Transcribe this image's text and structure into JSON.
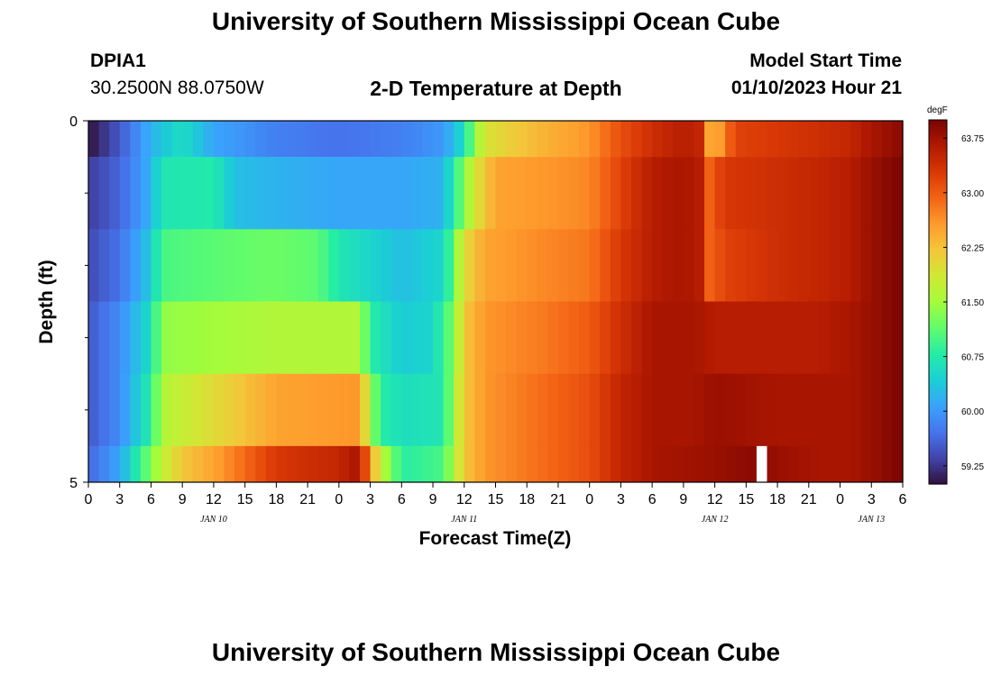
{
  "header": {
    "title": "University of Southern Mississippi Ocean Cube",
    "station_id": "DPIA1",
    "station_coords": "30.2500N  88.0750W",
    "chart_title": "2-D Temperature at Depth",
    "model_start_label": "Model Start Time",
    "model_start_value": "01/10/2023 Hour 21"
  },
  "footer": {
    "title_repeat": "University of Southern Mississippi Ocean Cube"
  },
  "colors": {
    "scale": [
      "#30123b",
      "#4145ab",
      "#4675ed",
      "#39a2fc",
      "#1bcfd4",
      "#24eca6",
      "#61fc6c",
      "#a4fc3b",
      "#d1e834",
      "#f3c63a",
      "#fe9b2d",
      "#f36315",
      "#d93806",
      "#b11901",
      "#7a0402"
    ]
  },
  "chart_data": {
    "type": "heatmap",
    "title": "2-D Temperature at Depth",
    "xlabel": "Forecast Time(Z)",
    "ylabel": "Depth (ft)",
    "x_tick_labels": [
      "0",
      "3",
      "6",
      "9",
      "12",
      "15",
      "18",
      "21",
      "0",
      "3",
      "6",
      "9",
      "12",
      "15",
      "18",
      "21",
      "0",
      "3",
      "6",
      "9",
      "12",
      "15",
      "18",
      "21",
      "0",
      "3",
      "6"
    ],
    "x_range_hours": [
      0,
      78
    ],
    "date_labels": [
      {
        "text": "JAN 10",
        "hour": 12
      },
      {
        "text": "JAN 11",
        "hour": 36
      },
      {
        "text": "JAN 12",
        "hour": 60
      },
      {
        "text": "JAN 13",
        "hour": 75
      }
    ],
    "y_tick_labels": [
      "0",
      "5"
    ],
    "y_range_ft": [
      0,
      5
    ],
    "y_minor_ticks_ft": [
      1,
      2,
      3,
      4
    ],
    "depth_layers_ft": [
      [
        0,
        0.5
      ],
      [
        0.5,
        1.5
      ],
      [
        1.5,
        2.5
      ],
      [
        2.5,
        3.5
      ],
      [
        3.5,
        4.5
      ],
      [
        4.5,
        5
      ]
    ],
    "colorbar": {
      "unit": "degF",
      "range": [
        59.0,
        64.0
      ],
      "tick_values": [
        59.25,
        60.0,
        60.75,
        61.5,
        62.25,
        63.0,
        63.75
      ],
      "tick_labels": [
        "59.25",
        "60.00",
        "60.75",
        "61.50",
        "62.25",
        "63.00",
        "63.75"
      ]
    },
    "layers": [
      {
        "depth_ft": "0-0.5",
        "knots": [
          [
            0,
            59.0
          ],
          [
            3,
            59.5
          ],
          [
            6,
            60.2
          ],
          [
            9,
            60.6
          ],
          [
            12,
            60.1
          ],
          [
            18,
            59.8
          ],
          [
            24,
            59.7
          ],
          [
            30,
            59.8
          ],
          [
            34,
            60.0
          ],
          [
            36,
            60.6
          ],
          [
            37,
            61.4
          ],
          [
            38,
            61.9
          ],
          [
            40,
            62.1
          ],
          [
            44,
            62.4
          ],
          [
            48,
            62.6
          ],
          [
            51,
            63.1
          ],
          [
            54,
            63.4
          ],
          [
            57,
            63.6
          ],
          [
            58.5,
            63.5
          ],
          [
            59,
            62.7
          ],
          [
            60,
            62.3
          ],
          [
            61,
            62.8
          ],
          [
            62,
            63.2
          ],
          [
            66,
            63.3
          ],
          [
            70,
            63.4
          ],
          [
            73,
            63.5
          ],
          [
            75,
            63.7
          ],
          [
            78,
            63.9
          ]
        ]
      },
      {
        "depth_ft": "0.5-1.5",
        "knots": [
          [
            0,
            59.3
          ],
          [
            3,
            59.6
          ],
          [
            6,
            60.2
          ],
          [
            7,
            60.7
          ],
          [
            12,
            60.75
          ],
          [
            14,
            60.3
          ],
          [
            18,
            60.2
          ],
          [
            24,
            60.1
          ],
          [
            30,
            60.1
          ],
          [
            34,
            60.2
          ],
          [
            35,
            60.8
          ],
          [
            36,
            61.3
          ],
          [
            37,
            61.9
          ],
          [
            39,
            62.5
          ],
          [
            44,
            62.6
          ],
          [
            48,
            62.7
          ],
          [
            51,
            63.2
          ],
          [
            54,
            63.6
          ],
          [
            57,
            63.7
          ],
          [
            58.5,
            63.6
          ],
          [
            59,
            62.8
          ],
          [
            60,
            63.1
          ],
          [
            61,
            63.3
          ],
          [
            66,
            63.4
          ],
          [
            70,
            63.5
          ],
          [
            73,
            63.6
          ],
          [
            75,
            63.8
          ],
          [
            78,
            64.0
          ]
        ]
      },
      {
        "depth_ft": "1.5-2.5",
        "knots": [
          [
            0,
            59.4
          ],
          [
            3,
            59.7
          ],
          [
            6,
            60.4
          ],
          [
            7,
            61.0
          ],
          [
            12,
            61.1
          ],
          [
            18,
            61.2
          ],
          [
            22,
            61.1
          ],
          [
            24,
            60.7
          ],
          [
            30,
            60.3
          ],
          [
            34,
            60.5
          ],
          [
            35,
            61.2
          ],
          [
            36,
            62.0
          ],
          [
            38,
            62.5
          ],
          [
            44,
            62.7
          ],
          [
            48,
            62.8
          ],
          [
            51,
            63.3
          ],
          [
            54,
            63.6
          ],
          [
            57,
            63.7
          ],
          [
            58.5,
            63.6
          ],
          [
            59,
            62.9
          ],
          [
            60,
            63.0
          ],
          [
            61,
            63.2
          ],
          [
            66,
            63.4
          ],
          [
            70,
            63.5
          ],
          [
            73,
            63.6
          ],
          [
            75,
            63.8
          ],
          [
            78,
            64.0
          ]
        ]
      },
      {
        "depth_ft": "2.5-3.5",
        "knots": [
          [
            0,
            59.5
          ],
          [
            3,
            59.9
          ],
          [
            6,
            60.6
          ],
          [
            7,
            61.4
          ],
          [
            12,
            61.5
          ],
          [
            18,
            61.6
          ],
          [
            26,
            61.6
          ],
          [
            27,
            60.8
          ],
          [
            30,
            60.4
          ],
          [
            33,
            60.5
          ],
          [
            35,
            61.3
          ],
          [
            36,
            62.2
          ],
          [
            38,
            62.6
          ],
          [
            44,
            62.8
          ],
          [
            48,
            63.0
          ],
          [
            51,
            63.4
          ],
          [
            54,
            63.7
          ],
          [
            58,
            63.7
          ],
          [
            60,
            63.6
          ],
          [
            66,
            63.6
          ],
          [
            70,
            63.6
          ],
          [
            73,
            63.7
          ],
          [
            75,
            63.8
          ],
          [
            78,
            64.0
          ]
        ]
      },
      {
        "depth_ft": "3.5-4.5",
        "knots": [
          [
            0,
            59.5
          ],
          [
            3,
            59.9
          ],
          [
            6,
            60.8
          ],
          [
            7,
            61.6
          ],
          [
            12,
            62.0
          ],
          [
            18,
            62.5
          ],
          [
            26,
            62.6
          ],
          [
            27,
            61.5
          ],
          [
            28,
            60.8
          ],
          [
            30,
            60.6
          ],
          [
            34,
            60.7
          ],
          [
            35,
            61.5
          ],
          [
            36,
            62.2
          ],
          [
            38,
            62.6
          ],
          [
            44,
            62.9
          ],
          [
            48,
            63.1
          ],
          [
            51,
            63.5
          ],
          [
            54,
            63.7
          ],
          [
            58,
            63.7
          ],
          [
            60,
            63.8
          ],
          [
            66,
            63.7
          ],
          [
            70,
            63.7
          ],
          [
            73,
            63.7
          ],
          [
            75,
            63.8
          ],
          [
            78,
            64.0
          ]
        ]
      },
      {
        "depth_ft": "4.5-5",
        "knots": [
          [
            0,
            59.6
          ],
          [
            3,
            60.1
          ],
          [
            5,
            60.9
          ],
          [
            7,
            61.7
          ],
          [
            9,
            62.2
          ],
          [
            12,
            62.5
          ],
          [
            15,
            62.9
          ],
          [
            18,
            63.3
          ],
          [
            24,
            63.5
          ],
          [
            26,
            63.7
          ],
          [
            27,
            62.6
          ],
          [
            28,
            61.7
          ],
          [
            29,
            61.3
          ],
          [
            30,
            60.8
          ],
          [
            34,
            61.0
          ],
          [
            35,
            61.6
          ],
          [
            36,
            62.2
          ],
          [
            38,
            62.6
          ],
          [
            44,
            62.9
          ],
          [
            48,
            63.1
          ],
          [
            51,
            63.5
          ],
          [
            54,
            63.7
          ],
          [
            60,
            63.8
          ],
          [
            64,
            63.9
          ],
          [
            66,
            63.8
          ],
          [
            70,
            63.7
          ],
          [
            73,
            63.7
          ],
          [
            75,
            63.8
          ],
          [
            78,
            64.0
          ]
        ]
      }
    ],
    "missing_cells": [
      {
        "layer": 5,
        "hours": [
          64,
          65
        ]
      }
    ]
  }
}
